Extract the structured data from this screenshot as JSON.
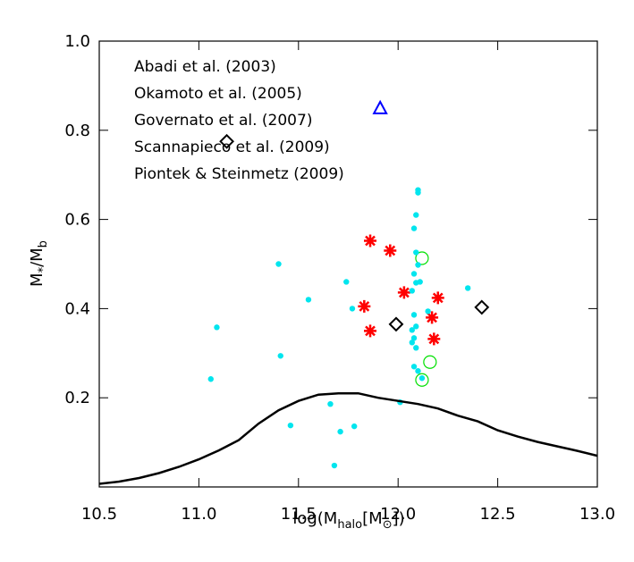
{
  "chart_data": {
    "type": "scatter",
    "x_label": [
      "log(M",
      "halo",
      "[M",
      "⊙",
      "])"
    ],
    "y_label": [
      "M",
      "*",
      "/M",
      "b"
    ],
    "xlim": [
      10.5,
      13.0
    ],
    "ylim": [
      0,
      1
    ],
    "xticks": [
      10.5,
      {
        "value": 11,
        "label": "11.0"
      },
      11.5,
      {
        "value": 12,
        "label": "12.0"
      },
      12.5,
      {
        "value": 13,
        "label": "13.0"
      }
    ],
    "yticks": [
      0.2,
      0.4,
      0.6,
      0.8,
      {
        "value": 1,
        "label": "1.0"
      }
    ],
    "legend": "upper left",
    "series": [
      {
        "name": "Abadi et al. (2003)",
        "color": "#0000ff",
        "marker": "triangle",
        "x": [
          11.91
        ],
        "values": [
          0.848
        ]
      },
      {
        "name": "Okamoto et al. (2005)",
        "color": "#00e000",
        "marker": "circle",
        "x": [
          12.12,
          12.16,
          12.12
        ],
        "values": [
          0.513,
          0.28,
          0.24
        ]
      },
      {
        "name": "Governato et al. (2007)",
        "color": "#000000",
        "marker": "diamond",
        "x": [
          11.14,
          11.99,
          12.42
        ],
        "values": [
          0.775,
          0.365,
          0.403
        ]
      },
      {
        "name": "Scannapieco et al. (2009)",
        "color": "#ff0000",
        "marker": "asterisk",
        "x": [
          11.86,
          11.96,
          12.03,
          11.83,
          12.2,
          11.86,
          12.17,
          12.18
        ],
        "values": [
          0.552,
          0.53,
          0.436,
          0.405,
          0.424,
          0.35,
          0.38,
          0.332
        ]
      },
      {
        "name": "Piontek & Steinmetz (2009)",
        "color": "#00e5ee",
        "marker": "dot",
        "x": [
          11.06,
          11.09,
          11.41,
          11.4,
          11.55,
          11.46,
          11.66,
          11.71,
          11.68,
          11.78,
          11.74,
          12.01,
          12.1,
          12.1,
          12.09,
          12.08,
          12.09,
          12.1,
          12.08,
          12.11,
          12.09,
          12.07,
          12.15,
          12.08,
          12.09,
          12.07,
          12.08,
          12.07,
          12.09,
          12.08,
          12.1,
          12.12,
          12.35,
          11.77
        ],
        "values": [
          0.242,
          0.358,
          0.294,
          0.5,
          0.42,
          0.138,
          0.186,
          0.124,
          0.048,
          0.136,
          0.46,
          0.19,
          0.666,
          0.66,
          0.61,
          0.58,
          0.526,
          0.498,
          0.478,
          0.46,
          0.458,
          0.44,
          0.394,
          0.386,
          0.36,
          0.352,
          0.334,
          0.324,
          0.312,
          0.27,
          0.26,
          0.244,
          0.446,
          0.4
        ]
      },
      {
        "color": "#000000",
        "marker": "line",
        "x": [
          10.5,
          10.6,
          10.7,
          10.8,
          10.9,
          11.0,
          11.1,
          11.2,
          11.3,
          11.4,
          11.5,
          11.6,
          11.7,
          11.8,
          11.9,
          12.0,
          12.1,
          12.2,
          12.3,
          12.4,
          12.5,
          12.6,
          12.7,
          12.8,
          12.9,
          13.0
        ],
        "values": [
          0.007,
          0.012,
          0.02,
          0.031,
          0.045,
          0.062,
          0.082,
          0.105,
          0.142,
          0.172,
          0.193,
          0.207,
          0.21,
          0.21,
          0.2,
          0.193,
          0.186,
          0.176,
          0.16,
          0.147,
          0.127,
          0.113,
          0.101,
          0.091,
          0.081,
          0.07
        ]
      }
    ]
  }
}
